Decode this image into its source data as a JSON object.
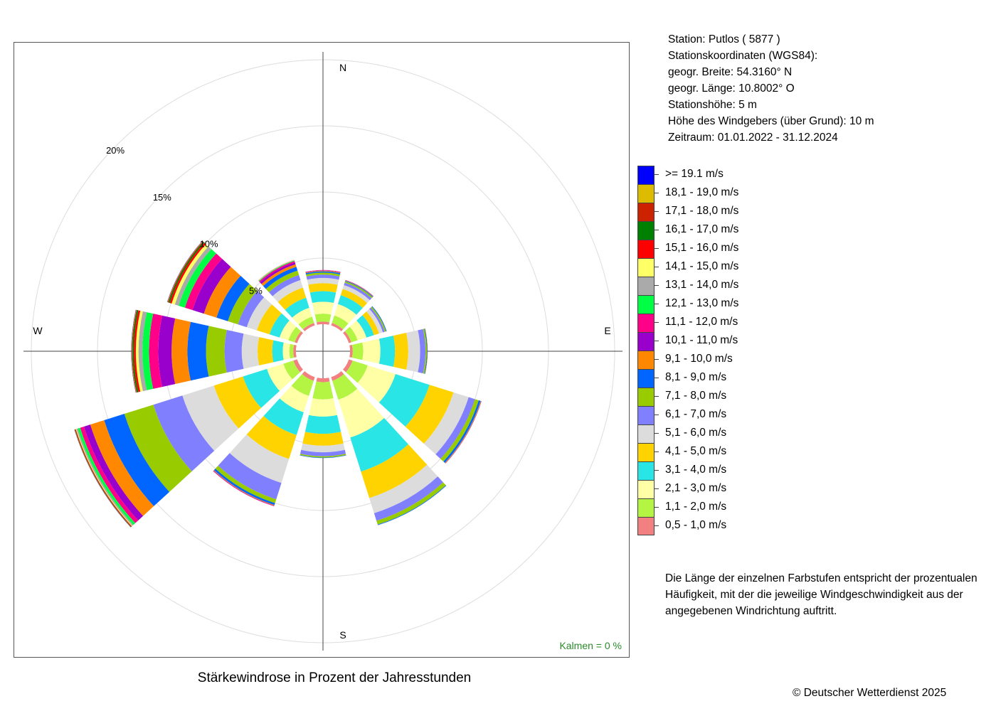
{
  "chart_data": {
    "type": "wind_rose",
    "title": "Stärkewindrose in Prozent der Jahresstunden",
    "directions_label": [
      "N",
      "E",
      "S",
      "W"
    ],
    "ring_labels": [
      "5%",
      "10%",
      "15%",
      "20%"
    ],
    "ring_values": [
      5,
      10,
      15,
      20
    ],
    "calm_text": "Kalmen  =  0 %",
    "sector_directions_deg": [
      0,
      30,
      60,
      90,
      120,
      150,
      180,
      210,
      240,
      270,
      300,
      330
    ],
    "speed_classes": [
      {
        "label": "0,5 - 1,0 m/s",
        "color": "#f28080"
      },
      {
        "label": "1,1 - 2,0 m/s",
        "color": "#b3f542"
      },
      {
        "label": "2,1 - 3,0 m/s",
        "color": "#ffffa6"
      },
      {
        "label": "3,1 - 4,0 m/s",
        "color": "#2ae5e5"
      },
      {
        "label": "4,1 - 5,0 m/s",
        "color": "#ffd300"
      },
      {
        "label": "5,1 - 6,0 m/s",
        "color": "#dcdcdc"
      },
      {
        "label": "6,1 - 7,0 m/s",
        "color": "#8080ff"
      },
      {
        "label": "7,1 - 8,0 m/s",
        "color": "#99cc00"
      },
      {
        "label": "8,1 - 9,0 m/s",
        "color": "#0066ff"
      },
      {
        "label": "9,1 - 10,0 m/s",
        "color": "#ff8800"
      },
      {
        "label": "10,1 - 11,0 m/s",
        "color": "#9900cc"
      },
      {
        "label": "11,1 - 12,0 m/s",
        "color": "#ff0088"
      },
      {
        "label": "12,1 - 13,0 m/s",
        "color": "#00ff44"
      },
      {
        "label": "13,1 - 14,0 m/s",
        "color": "#aaaaaa"
      },
      {
        "label": "14,1 - 15,0 m/s",
        "color": "#ffff66"
      },
      {
        "label": "15,1 - 16,0 m/s",
        "color": "#ff0000"
      },
      {
        "label": "16,1 - 17,0 m/s",
        "color": "#008000"
      },
      {
        "label": "17,1 - 18,0 m/s",
        "color": "#cc2200"
      },
      {
        "label": "18,1 - 19,0 m/s",
        "color": "#ddbb00"
      },
      {
        "label": ">= 19.1 m/s",
        "color": "#0000ff"
      }
    ],
    "series": [
      {
        "direction": 0,
        "values": [
          0.2,
          0.6,
          0.9,
          0.8,
          0.6,
          0.4,
          0.25,
          0.15,
          0.1,
          0.05,
          0.03,
          0.02,
          0,
          0,
          0,
          0,
          0,
          0,
          0,
          0
        ]
      },
      {
        "direction": 30,
        "values": [
          0.2,
          0.6,
          0.9,
          0.7,
          0.5,
          0.3,
          0.2,
          0.1,
          0.05,
          0.03,
          0.02,
          0.01,
          0,
          0,
          0,
          0,
          0,
          0,
          0,
          0
        ]
      },
      {
        "direction": 60,
        "values": [
          0.2,
          0.5,
          0.7,
          0.6,
          0.4,
          0.3,
          0.15,
          0.1,
          0.05,
          0,
          0,
          0,
          0,
          0,
          0,
          0,
          0,
          0,
          0,
          0
        ]
      },
      {
        "direction": 90,
        "values": [
          0.2,
          0.8,
          1.3,
          1.1,
          1.0,
          0.9,
          0.4,
          0.1,
          0.05,
          0.02,
          0,
          0,
          0,
          0,
          0,
          0,
          0,
          0,
          0,
          0
        ]
      },
      {
        "direction": 120,
        "values": [
          0.3,
          1.2,
          2.2,
          2.7,
          1.9,
          1.2,
          0.5,
          0.3,
          0.15,
          0.05,
          0.02,
          0,
          0,
          0,
          0,
          0,
          0,
          0,
          0,
          0
        ]
      },
      {
        "direction": 150,
        "values": [
          0.3,
          1.5,
          3.0,
          2.7,
          2.1,
          1.2,
          0.6,
          0.3,
          0.05,
          0,
          0,
          0,
          0,
          0,
          0,
          0,
          0,
          0,
          0,
          0
        ]
      },
      {
        "direction": 180,
        "values": [
          0.3,
          1.3,
          1.3,
          1.3,
          0.9,
          0.5,
          0.3,
          0.1,
          0.03,
          0,
          0,
          0,
          0,
          0,
          0,
          0,
          0,
          0,
          0,
          0
        ]
      },
      {
        "direction": 210,
        "values": [
          0.3,
          1.2,
          1.3,
          1.8,
          1.9,
          1.9,
          1.3,
          0.3,
          0.15,
          0.05,
          0.03,
          0.02,
          0,
          0,
          0,
          0,
          0,
          0,
          0,
          0
        ]
      },
      {
        "direction": 240,
        "values": [
          0.3,
          0.8,
          1.3,
          1.9,
          2.3,
          2.5,
          2.3,
          2.3,
          1.6,
          1.1,
          0.5,
          0.3,
          0.2,
          0.1,
          0.05,
          0.05,
          0.03,
          0.02,
          0.01,
          0.01
        ]
      },
      {
        "direction": 270,
        "values": [
          0.2,
          0.3,
          0.5,
          0.8,
          1.1,
          1.2,
          1.3,
          1.4,
          1.4,
          1.2,
          1.0,
          0.7,
          0.5,
          0.3,
          0.2,
          0.15,
          0.1,
          0.05,
          0.03,
          0.02
        ]
      },
      {
        "direction": 300,
        "values": [
          0.2,
          0.5,
          0.7,
          0.8,
          1.0,
          0.8,
          0.7,
          0.8,
          0.9,
          1.0,
          0.9,
          0.6,
          0.5,
          0.3,
          0.25,
          0.15,
          0.1,
          0.06,
          0.03,
          0.02
        ]
      },
      {
        "direction": 330,
        "values": [
          0.2,
          0.5,
          0.7,
          0.8,
          0.8,
          0.6,
          0.4,
          0.35,
          0.3,
          0.2,
          0.15,
          0.1,
          0.05,
          0.03,
          0.02,
          0.01,
          0,
          0,
          0,
          0
        ]
      }
    ]
  },
  "station": {
    "line1": "Station:  Putlos  ( 5877 )",
    "line2": "Stationskoordinaten (WGS84):",
    "line3": "geogr. Breite: 54.3160° N",
    "line4": "geogr. Länge: 10.8002° O",
    "line5": "Stationshöhe: 5 m",
    "line6": "Höhe des Windgebers (über Grund): 10 m",
    "line7": "Zeitraum: 01.01.2022 - 31.12.2024"
  },
  "legend_labels": [
    ">= 19.1 m/s",
    "18,1 - 19,0 m/s",
    "17,1 - 18,0 m/s",
    "16,1 - 17,0 m/s",
    "15,1 - 16,0 m/s",
    "14,1 - 15,0 m/s",
    "13,1 - 14,0 m/s",
    "12,1 - 13,0 m/s",
    "11,1 - 12,0 m/s",
    "10,1 - 11,0 m/s",
    "9,1 - 10,0 m/s",
    "8,1 - 9,0 m/s",
    "7,1 - 8,0 m/s",
    "6,1 - 7,0 m/s",
    "5,1 - 6,0 m/s",
    "4,1 - 5,0 m/s",
    "3,1 - 4,0 m/s",
    "2,1 - 3,0 m/s",
    "1,1 - 2,0 m/s",
    "0,5 - 1,0 m/s"
  ],
  "legend_colors": [
    "#0000ff",
    "#ddbb00",
    "#cc2200",
    "#008000",
    "#ff0000",
    "#ffff66",
    "#aaaaaa",
    "#00ff44",
    "#ff0088",
    "#9900cc",
    "#ff8800",
    "#0066ff",
    "#99cc00",
    "#8080ff",
    "#dcdcdc",
    "#ffd300",
    "#2ae5e5",
    "#ffffa6",
    "#b3f542",
    "#f28080"
  ],
  "note": {
    "line1": "Die Länge der einzelnen Farbstufen entspricht der prozentualen",
    "line2": "Häufigkeit, mit der die jeweilige Windgeschwindigkeit aus der",
    "line3": "angegebenen Windrichtung auftritt."
  },
  "copyright": "© Deutscher Wetterdienst  2025"
}
